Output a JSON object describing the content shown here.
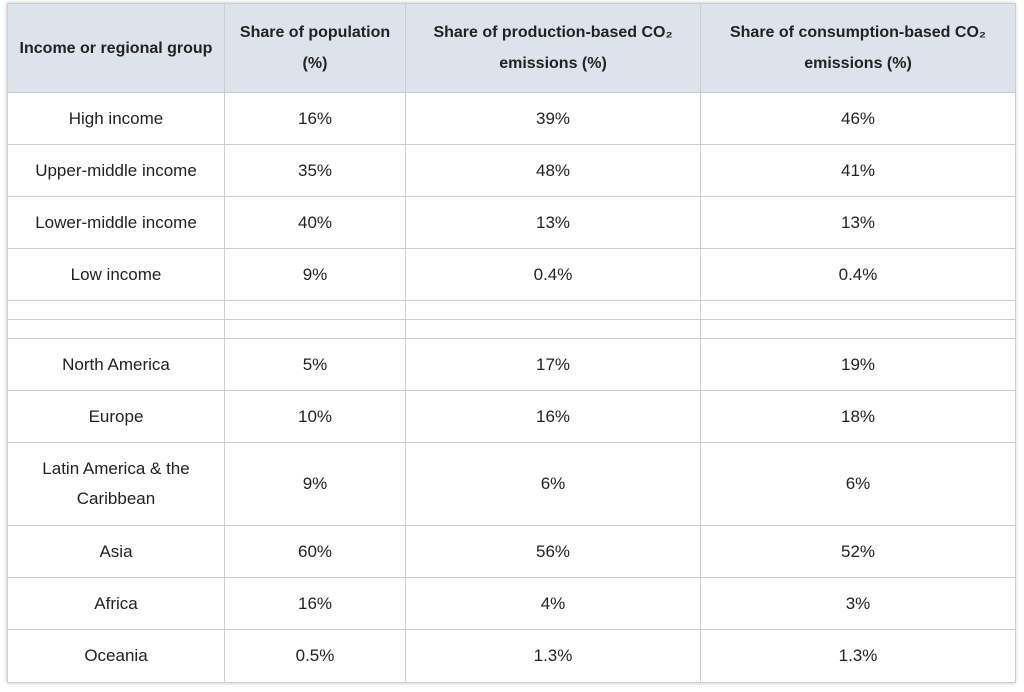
{
  "table": {
    "headers": [
      "Income or regional group",
      "Share of population (%)",
      "Share of production-based CO₂ emissions (%)",
      "Share of consumption-based CO₂ emissions (%)"
    ],
    "income_rows": [
      {
        "group": "High income",
        "population": "16%",
        "production": "39%",
        "consumption": "46%"
      },
      {
        "group": "Upper-middle income",
        "population": "35%",
        "production": "48%",
        "consumption": "41%"
      },
      {
        "group": "Lower-middle income",
        "population": "40%",
        "production": "13%",
        "consumption": "13%"
      },
      {
        "group": "Low income",
        "population": "9%",
        "production": "0.4%",
        "consumption": "0.4%"
      }
    ],
    "region_rows": [
      {
        "group": "North America",
        "population": "5%",
        "production": "17%",
        "consumption": "19%"
      },
      {
        "group": "Europe",
        "population": "10%",
        "production": "16%",
        "consumption": "18%"
      },
      {
        "group": "Latin America & the Caribbean",
        "population": "9%",
        "production": "6%",
        "consumption": "6%"
      },
      {
        "group": "Asia",
        "population": "60%",
        "production": "56%",
        "consumption": "52%"
      },
      {
        "group": "Africa",
        "population": "16%",
        "production": "4%",
        "consumption": "3%"
      },
      {
        "group": "Oceania",
        "population": "0.5%",
        "production": "1.3%",
        "consumption": "1.3%"
      }
    ]
  },
  "colors": {
    "header_background": "#dde3ea",
    "border": "#c9ced3",
    "text": "#222222"
  }
}
